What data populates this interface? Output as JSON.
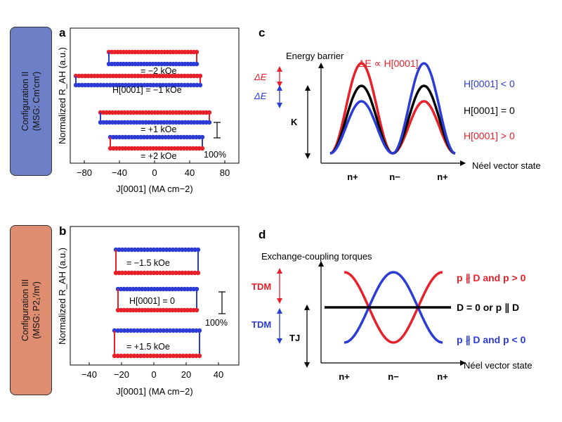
{
  "config_a": {
    "line1": "Configuration II",
    "line2": "(MSG: Cm′cm′)"
  },
  "config_b": {
    "line1": "Configuration III",
    "line2": "(MSG: P2₁′/m′)"
  },
  "panel_a": {
    "letter": "a",
    "ylabel": "Normalized R_AH (a.u.)",
    "xlabel": "J[0001] (MA cm−2)",
    "xticks": [
      "−80",
      "−40",
      "0",
      "40",
      "80"
    ],
    "labels": [
      "= −2 kOe",
      "H[0001] = −1 kOe",
      "= +1 kOe",
      "= +2 kOe"
    ],
    "scale_label": "100%"
  },
  "panel_b": {
    "letter": "b",
    "ylabel": "Normalized R_AH (a.u.)",
    "xlabel": "J[0001] (MA cm−2)",
    "xticks": [
      "−40",
      "−20",
      "0",
      "20",
      "40"
    ],
    "labels": [
      "= −1.5 kOe",
      "H[0001] = 0",
      "= +1.5 kOe"
    ],
    "scale_label": "100%"
  },
  "panel_c": {
    "letter": "c",
    "ylabel": "Energy barrier",
    "xlabel": "Néel vector state",
    "xticks": [
      "n+",
      "n−",
      "n+"
    ],
    "header": "ΔE ∝ H[0001]",
    "dE_red": "ΔE",
    "dE_blue": "ΔE",
    "K": "K",
    "legend": [
      "H[0001] < 0",
      "H[0001] = 0",
      "H[0001] > 0"
    ]
  },
  "panel_d": {
    "letter": "d",
    "ylabel": "Exchange-coupling torques",
    "xlabel": "Néel vector state",
    "xticks": [
      "n+",
      "n−",
      "n+"
    ],
    "T_DM_red": "TDM",
    "T_DM_blue": "TDM",
    "T_J": "TJ",
    "legend": [
      "p ∦ D and p > 0",
      "D = 0 or p ∥ D",
      "p ∦ D and p < 0"
    ]
  },
  "colors": {
    "red": "#e8202a",
    "blue": "#2a3bd6",
    "black": "#000000",
    "tab_blue": "#6d7fc7",
    "tab_orange": "#df8d70"
  }
}
